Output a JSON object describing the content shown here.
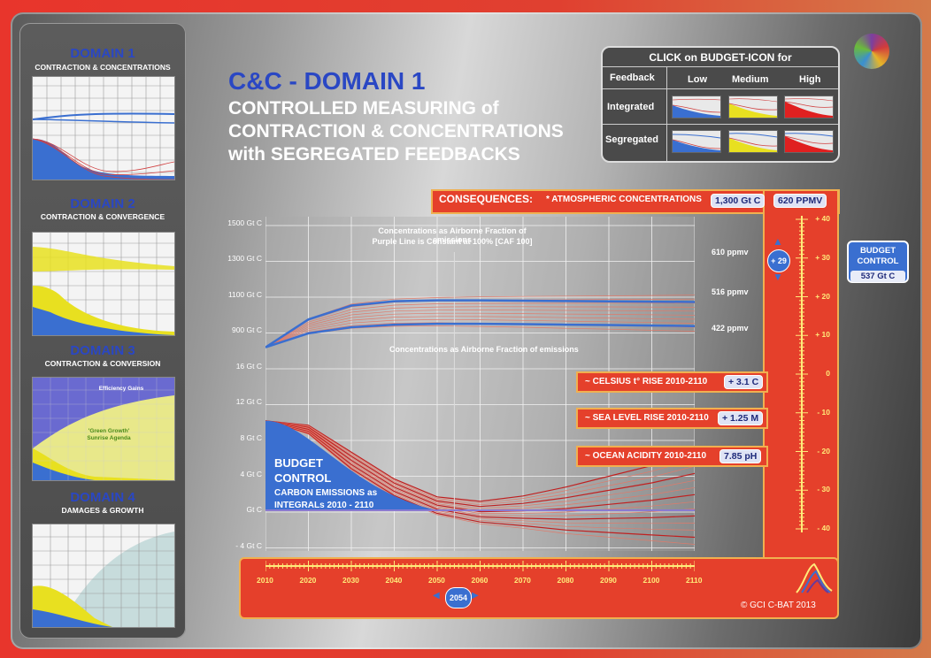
{
  "sidebar": {
    "domains": [
      {
        "title": "DOMAIN 1",
        "subtitle": "CONTRACTION & CONCENTRATIONS"
      },
      {
        "title": "DOMAIN 2",
        "subtitle": "CONTRACTION & CONVERGENCE"
      },
      {
        "title": "DOMAIN 3",
        "subtitle": "CONTRACTION & CONVERSION"
      },
      {
        "title": "DOMAIN 4",
        "subtitle": "DAMAGES & GROWTH"
      }
    ],
    "domain3_labels": {
      "top": "Efficiency Gains",
      "mid1": "'Green Growth'",
      "mid2": "Sunrise Agenda"
    }
  },
  "header": {
    "title": "C&C - DOMAIN 1",
    "subtitle_lines": [
      "CONTROLLED MEASURING of",
      "CONTRACTION & CONCENTRATIONS",
      "with SEGREGATED FEEDBACKS"
    ]
  },
  "budget_icon_table": {
    "title": "CLICK on BUDGET-ICON for",
    "col_header": "Feedback",
    "columns": [
      "Low",
      "Medium",
      "High"
    ],
    "rows": [
      "Integrated",
      "Segregated"
    ]
  },
  "consequences": {
    "label": "CONSEQUENCES:",
    "atmospheric_label": "* ATMOSPHERIC CONCENTRATIONS",
    "atmospheric_gtc": "1,300 Gt C",
    "atmospheric_ppmv": "620 PPMV",
    "items": [
      {
        "label": "~ CELSIUS t° RISE 2010-2110",
        "value": "+ 3.1 C"
      },
      {
        "label": "~ SEA LEVEL RISE 2010-2110",
        "value": "+ 1.25 M"
      },
      {
        "label": "~ OCEAN ACIDITY 2010-2110",
        "value": "7.85 pH"
      }
    ]
  },
  "budget_control": {
    "line1": "BUDGET",
    "line2": "CONTROL",
    "value": "537 Gt C"
  },
  "slider": {
    "value": "+ 29",
    "ticks": [
      "+ 40",
      "+ 30",
      "+ 20",
      "+ 10",
      "0",
      "- 10",
      "- 20",
      "- 30",
      "- 40"
    ]
  },
  "year_selector": {
    "value": "2054"
  },
  "chart": {
    "upper_note_1": "Concentrations as Airborne Fraction of emissions",
    "upper_note_2": "Purple Line is Constant at 100% [CAF 100]",
    "mid_note": "Concentrations as Airborne Fraction of emissions",
    "ppmv_labels": [
      "610 ppmv",
      "516 ppmv",
      "422 ppmv"
    ],
    "budget_label_1": "BUDGET",
    "budget_label_2": "CONTROL",
    "budget_label_3": "CARBON EMISSIONS as",
    "budget_label_4": "INTEGRALs 2010 - 2110"
  },
  "chart_data": {
    "type": "line",
    "y_ticks_upper": [
      "1500 Gt C",
      "1300 Gt C",
      "1100 Gt C",
      "900 Gt C"
    ],
    "y_ticks_lower": [
      "16 Gt C",
      "12 Gt C",
      "8 Gt C",
      "4 Gt C",
      "Gt C",
      "- 4 Gt C"
    ],
    "x_ticks": [
      "2010",
      "2020",
      "2030",
      "2040",
      "2050",
      "2060",
      "2070",
      "2080",
      "2090",
      "2100",
      "2110"
    ],
    "upper_series": [
      {
        "values": [
          800,
          960,
          1040,
          1065,
          1070,
          1070,
          1068,
          1066,
          1064,
          1062,
          1060
        ]
      },
      {
        "values": [
          800,
          880,
          915,
          930,
          935,
          935,
          933,
          930,
          928,
          925,
          922
        ]
      }
    ],
    "lower_series": [
      {
        "values": [
          10,
          9.5,
          6.5,
          3.5,
          1.5,
          1.0,
          1.6,
          2.6,
          3.8,
          5.0,
          6.5
        ]
      },
      {
        "values": [
          10,
          9.0,
          5.5,
          2.5,
          0.5,
          -0.2,
          0,
          0.4,
          0.8,
          1.2,
          1.6
        ]
      },
      {
        "values": [
          10,
          8.5,
          4.5,
          1.5,
          -0.5,
          -1.5,
          -2.0,
          -2.6,
          -3.0,
          -3.4,
          -3.8
        ]
      }
    ]
  },
  "copyright": "© GCI C-BAT 2013",
  "colors": {
    "accent_blue": "#2a47c4",
    "panel_red": "#e5402b",
    "emissions_blue": "#3a6fd0",
    "line_red": "#c84030"
  }
}
